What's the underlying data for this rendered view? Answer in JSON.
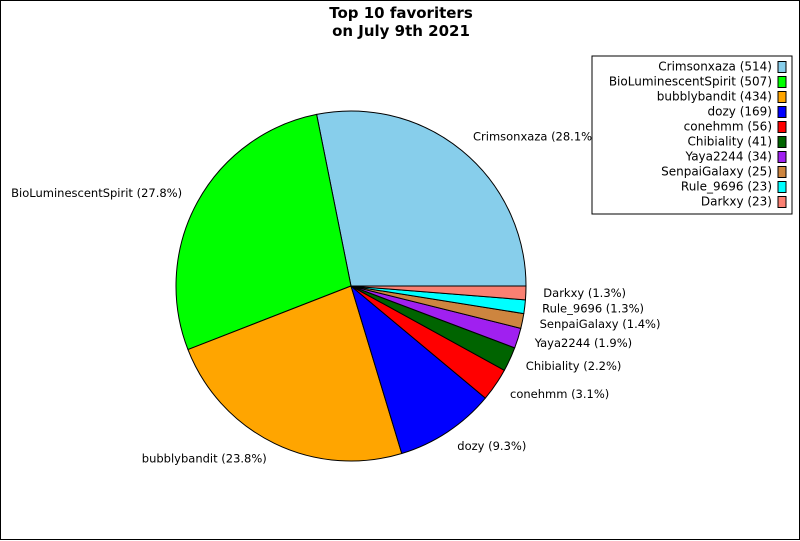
{
  "chart_data": {
    "type": "pie",
    "title_lines": [
      "Top 10 favoriters",
      "on July 9th 2021"
    ],
    "legend_position": "top-right",
    "start_angle_deg": 0,
    "direction": "counterclockwise",
    "slices": [
      {
        "name": "Crimsonxaza",
        "value": 514,
        "percent_label": "Crimsonxaza (28.1%)",
        "legend_label": "Crimsonxaza (514)",
        "color": "#87ceeb"
      },
      {
        "name": "BioLuminescentSpirit",
        "value": 507,
        "percent_label": "BioLuminescentSpirit (27.8%)",
        "legend_label": "BioLuminescentSpirit (507)",
        "color": "#00ff00"
      },
      {
        "name": "bubblybandit",
        "value": 434,
        "percent_label": "bubblybandit (23.8%)",
        "legend_label": "bubblybandit (434)",
        "color": "#ffa500"
      },
      {
        "name": "dozy",
        "value": 169,
        "percent_label": "dozy (9.3%)",
        "legend_label": "dozy (169)",
        "color": "#0000ff"
      },
      {
        "name": "conehmm",
        "value": 56,
        "percent_label": "conehmm (3.1%)",
        "legend_label": "conehmm (56)",
        "color": "#ff0000"
      },
      {
        "name": "Chibiality",
        "value": 41,
        "percent_label": "Chibiality (2.2%)",
        "legend_label": "Chibiality (41)",
        "color": "#006400"
      },
      {
        "name": "Yaya2244",
        "value": 34,
        "percent_label": "Yaya2244 (1.9%)",
        "legend_label": "Yaya2244 (34)",
        "color": "#a020f0"
      },
      {
        "name": "SenpaiGalaxy",
        "value": 25,
        "percent_label": "SenpaiGalaxy (1.4%)",
        "legend_label": "SenpaiGalaxy (25)",
        "color": "#cd853f"
      },
      {
        "name": "Rule_9696",
        "value": 23,
        "percent_label": "Rule_9696 (1.3%)",
        "legend_label": "Rule_9696 (23)",
        "color": "#00ffff"
      },
      {
        "name": "Darkxy",
        "value": 23,
        "percent_label": "Darkxy (1.3%)",
        "legend_label": "Darkxy (23)",
        "color": "#fa8072"
      }
    ]
  }
}
